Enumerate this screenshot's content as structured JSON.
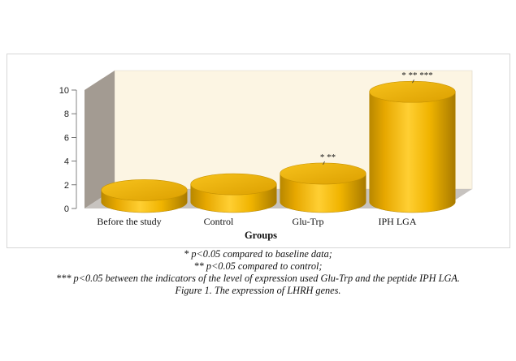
{
  "chart_data": {
    "type": "bar",
    "categories": [
      "Before the study",
      "Control",
      "Glu-Trp",
      "IPH LGA"
    ],
    "values": [
      1.0,
      1.5,
      2.4,
      9.3
    ],
    "ylim": [
      0,
      10
    ],
    "yticks": [
      "0",
      "2",
      "4",
      "6",
      "8",
      "10"
    ],
    "xlabel": "Groups",
    "ylabel": "",
    "grid": false,
    "style": "3d-cylinder",
    "bar_color": "#f0b400",
    "wall_color": "#fcf5e3",
    "side_wall_color": "#a39b92",
    "floor_color": "#c7c3bf",
    "annotations": [
      {
        "category": "Glu-Trp",
        "text": "* **"
      },
      {
        "category": "IPH LGA",
        "text": "* ** ***"
      }
    ]
  },
  "notes": {
    "line1": "* p<0.05 compared to baseline data;",
    "line2": "** p<0.05 compared to control;",
    "line3": "*** p<0.05 between the indicators of the level of expression used Glu-Trp and the peptide IPH LGA.",
    "caption": "Figure 1. The expression of LHRH genes."
  }
}
